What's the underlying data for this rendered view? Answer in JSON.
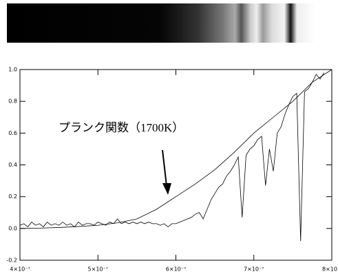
{
  "chart_data": {
    "type": "line",
    "annotation": "プランク関数（1700K）",
    "xlim": [
      4e-07,
      8e-07
    ],
    "xticks": [
      {
        "value": 4e-07,
        "label": "4×10⁻⁷"
      },
      {
        "value": 5e-07,
        "label": "5×10⁻⁷"
      },
      {
        "value": 6e-07,
        "label": "6×10⁻⁷"
      },
      {
        "value": 7e-07,
        "label": "7×10⁻⁷"
      },
      {
        "value": 8e-07,
        "label": "8×10"
      }
    ],
    "ylim": [
      -0.2,
      1
    ],
    "yticks": [
      -0.2,
      {
        "value": 0,
        "label": "0.0"
      },
      0.2,
      0.4,
      0.6,
      0.8,
      {
        "value": 1,
        "label": "1.0"
      }
    ],
    "series": [
      {
        "color": "#000000",
        "x": [
          4e-07,
          4.25e-07,
          4.5e-07,
          4.75e-07,
          5e-07,
          5.25e-07,
          5.5e-07,
          5.75e-07,
          6e-07,
          6.25e-07,
          6.5e-07,
          6.75e-07,
          7e-07,
          7.25e-07,
          7.5e-07,
          7.75e-07,
          8e-07
        ],
        "values": [
          0,
          0.002,
          0.006,
          0.012,
          0.02,
          0.035,
          0.06,
          0.12,
          0.2,
          0.28,
          0.37,
          0.48,
          0.6,
          0.7,
          0.8,
          0.92,
          1
        ]
      },
      {
        "color": "#000000",
        "x": [
          4e-07,
          4.05e-07,
          4.1e-07,
          4.15e-07,
          4.2e-07,
          4.25e-07,
          4.3e-07,
          4.35e-07,
          4.4e-07,
          4.45e-07,
          4.5e-07,
          4.55e-07,
          4.6e-07,
          4.65e-07,
          4.7e-07,
          4.75e-07,
          4.8e-07,
          4.85e-07,
          4.9e-07,
          4.95e-07,
          5e-07,
          5.05e-07,
          5.1e-07,
          5.15e-07,
          5.2e-07,
          5.25e-07,
          5.3e-07,
          5.35e-07,
          5.4e-07,
          5.45e-07,
          5.5e-07,
          5.55e-07,
          5.6e-07,
          5.65e-07,
          5.7e-07,
          5.75e-07,
          5.8e-07,
          5.85e-07,
          5.9e-07,
          5.95e-07,
          6e-07,
          6.05e-07,
          6.1e-07,
          6.15e-07,
          6.2e-07,
          6.25e-07,
          6.3e-07,
          6.35e-07,
          6.4e-07,
          6.45e-07,
          6.5e-07,
          6.55e-07,
          6.6e-07,
          6.65e-07,
          6.7e-07,
          6.75e-07,
          6.8e-07,
          6.85e-07,
          6.9e-07,
          6.95e-07,
          7e-07,
          7.05e-07,
          7.1e-07,
          7.15e-07,
          7.2e-07,
          7.25e-07,
          7.3e-07,
          7.35e-07,
          7.4e-07,
          7.45e-07,
          7.5e-07,
          7.55e-07,
          7.6e-07,
          7.65e-07,
          7.7e-07,
          7.75e-07,
          7.8e-07,
          7.85e-07,
          7.9e-07
        ],
        "values": [
          0.02,
          0.03,
          0.01,
          0.04,
          0.02,
          0.03,
          0.01,
          0.04,
          0.02,
          0.03,
          0.02,
          0.04,
          0.02,
          0.03,
          0.01,
          0.04,
          0.02,
          0.03,
          0.03,
          0.02,
          0.04,
          0.03,
          0.02,
          0.04,
          0.03,
          0.06,
          0.03,
          0.04,
          0.03,
          0.04,
          0.03,
          0.04,
          0.03,
          0.04,
          0.03,
          0.03,
          0.02,
          0.03,
          0.01,
          0.03,
          0.03,
          0.04,
          0.05,
          0.06,
          0.07,
          0.09,
          0.1,
          0.06,
          0.12,
          0.18,
          0.22,
          0.26,
          0.28,
          0.33,
          0.36,
          0.4,
          0.45,
          0.07,
          0.46,
          0.5,
          0.52,
          0.56,
          0.58,
          0.27,
          0.5,
          0.36,
          0.6,
          0.64,
          0.72,
          0.78,
          0.83,
          0.85,
          -0.08,
          0.86,
          0.88,
          0.92,
          0.97,
          0.94,
          0.98
        ]
      }
    ]
  }
}
